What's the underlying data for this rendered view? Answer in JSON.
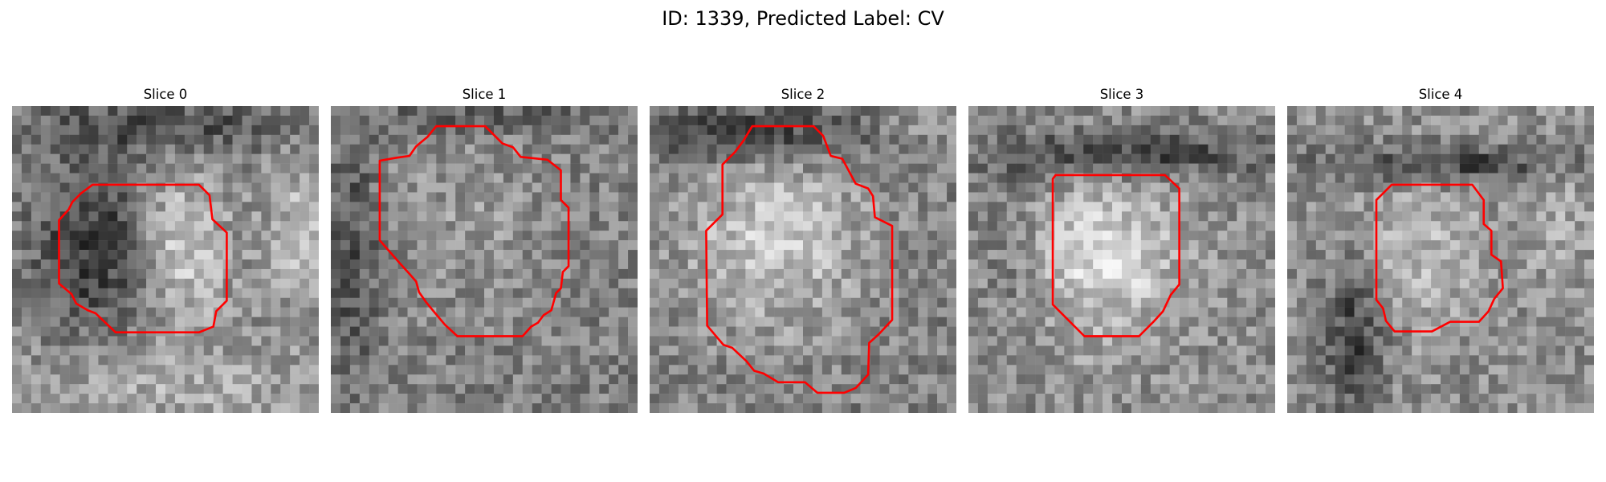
{
  "figure": {
    "title": "ID: 1339, Predicted Label: CV"
  },
  "slices": [
    {
      "title": "Slice 0"
    },
    {
      "title": "Slice 1"
    },
    {
      "title": "Slice 2"
    },
    {
      "title": "Slice 3"
    },
    {
      "title": "Slice 4"
    }
  ],
  "colors": {
    "contour": "#ff0000",
    "background": "#ffffff"
  }
}
